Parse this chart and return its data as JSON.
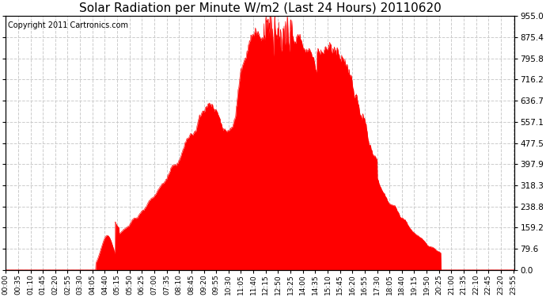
{
  "title": "Solar Radiation per Minute W/m2 (Last 24 Hours) 20110620",
  "copyright_text": "Copyright 2011 Cartronics.com",
  "yticks": [
    0.0,
    79.6,
    159.2,
    238.8,
    318.3,
    397.9,
    477.5,
    557.1,
    636.7,
    716.2,
    795.8,
    875.4,
    955.0
  ],
  "ymax": 955.0,
  "ymin": 0.0,
  "bar_color": "#FF0000",
  "grid_color": "#CCCCCC",
  "baseline_color": "#FF0000",
  "background_color": "#FFFFFF",
  "title_fontsize": 11,
  "copyright_fontsize": 7,
  "xtick_fontsize": 6.5,
  "ytick_fontsize": 7.5
}
